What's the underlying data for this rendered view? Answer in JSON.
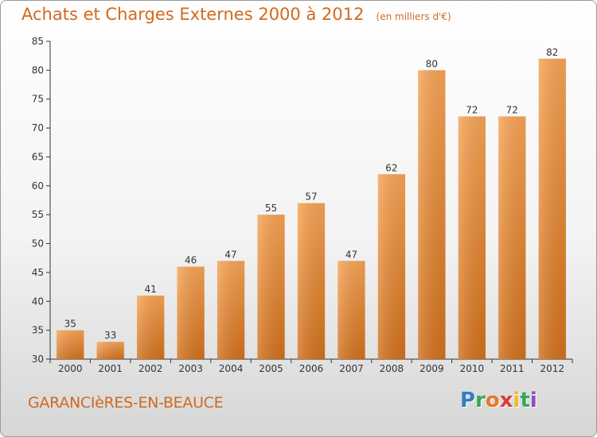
{
  "header": {
    "title": "Achats et Charges Externes 2000 à 2012",
    "unit": "(en milliers d'€)"
  },
  "footer": {
    "commune": "GARANCIèRES-EN-BEAUCE",
    "logo": [
      "P",
      "r",
      "o",
      "x",
      "i",
      "t",
      "i"
    ]
  },
  "colors": {
    "accent": "#d2691e",
    "bar_light": "#f7a455",
    "bar_dark": "#d97a22",
    "axis": "#333333",
    "grid_label": "#333333"
  },
  "chart_data": {
    "type": "bar",
    "title": "Achats et Charges Externes 2000 à 2012",
    "subtitle": "(en milliers d'€)",
    "xlabel": "",
    "ylabel": "",
    "categories": [
      "2000",
      "2001",
      "2002",
      "2003",
      "2004",
      "2005",
      "2006",
      "2007",
      "2008",
      "2009",
      "2010",
      "2011",
      "2012"
    ],
    "values": [
      35,
      33,
      41,
      46,
      47,
      55,
      57,
      47,
      62,
      80,
      72,
      72,
      82
    ],
    "ylim": [
      30,
      85
    ],
    "yticks": [
      30,
      35,
      40,
      45,
      50,
      55,
      60,
      65,
      70,
      75,
      80,
      85
    ],
    "grid": false,
    "legend": "none",
    "data_labels": true
  }
}
